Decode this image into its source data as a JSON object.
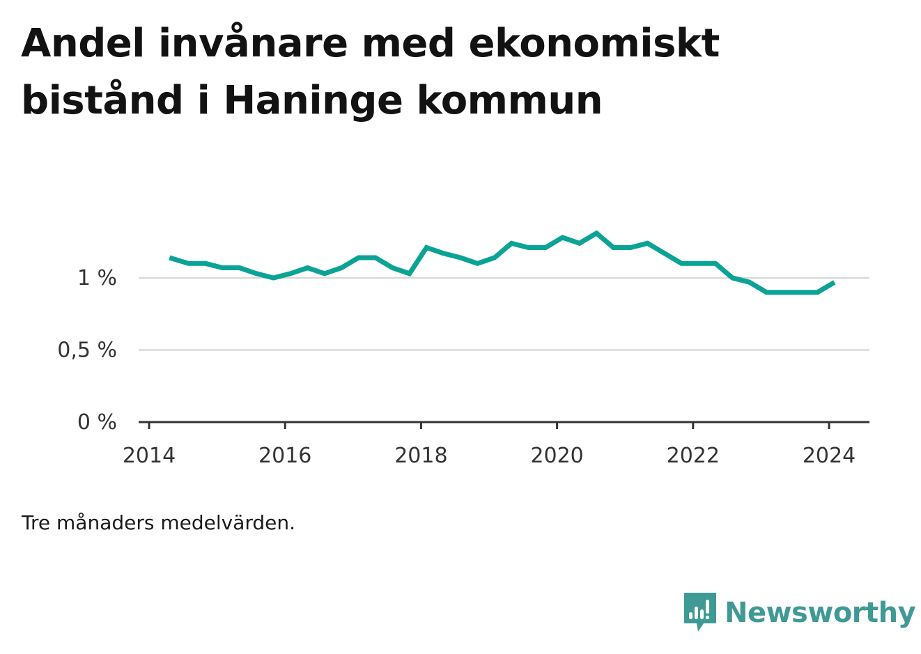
{
  "title": "Andel invånare med ekonomiskt bistånd i Haninge kommun",
  "note": "Tre månaders medelvärden.",
  "brand": {
    "name": "Newsworthy",
    "color": "#3f9a96",
    "icon": "newsworthy-logo-icon"
  },
  "colors": {
    "line": "#0aa395",
    "grid": "#d9d9d9",
    "axis": "#333333"
  },
  "chart_data": {
    "type": "line",
    "title": "Andel invånare med ekonomiskt bistånd i Haninge kommun",
    "xlabel": "",
    "ylabel": "",
    "xlim": [
      2014.0,
      2024.6
    ],
    "ylim": [
      0,
      1.35
    ],
    "x_ticks": [
      {
        "value": 2014,
        "label": "2014"
      },
      {
        "value": 2016,
        "label": "2016"
      },
      {
        "value": 2018,
        "label": "2018"
      },
      {
        "value": 2020,
        "label": "2020"
      },
      {
        "value": 2022,
        "label": "2022"
      },
      {
        "value": 2024,
        "label": "2024"
      }
    ],
    "y_ticks": [
      {
        "value": 0,
        "label": "0 %"
      },
      {
        "value": 0.5,
        "label": "0,5 %"
      },
      {
        "value": 1,
        "label": "1 %"
      }
    ],
    "series": [
      {
        "name": "Andel invånare med ekonomiskt bistånd",
        "x": [
          2014.3,
          2014.58,
          2014.83,
          2015.08,
          2015.33,
          2015.58,
          2015.83,
          2016.08,
          2016.33,
          2016.58,
          2016.83,
          2017.08,
          2017.33,
          2017.58,
          2017.83,
          2018.08,
          2018.33,
          2018.58,
          2018.83,
          2019.08,
          2019.33,
          2019.58,
          2019.83,
          2020.08,
          2020.33,
          2020.58,
          2020.83,
          2021.08,
          2021.33,
          2021.58,
          2021.83,
          2022.08,
          2022.33,
          2022.58,
          2022.83,
          2023.08,
          2023.33,
          2023.58,
          2023.83,
          2024.08
        ],
        "values": [
          1.14,
          1.1,
          1.1,
          1.07,
          1.07,
          1.03,
          1.0,
          1.03,
          1.07,
          1.03,
          1.07,
          1.14,
          1.14,
          1.07,
          1.03,
          1.21,
          1.17,
          1.14,
          1.1,
          1.14,
          1.24,
          1.21,
          1.21,
          1.28,
          1.24,
          1.31,
          1.21,
          1.21,
          1.24,
          1.17,
          1.1,
          1.1,
          1.1,
          1.0,
          0.97,
          0.9,
          0.9,
          0.9,
          0.9,
          0.97
        ]
      }
    ]
  }
}
